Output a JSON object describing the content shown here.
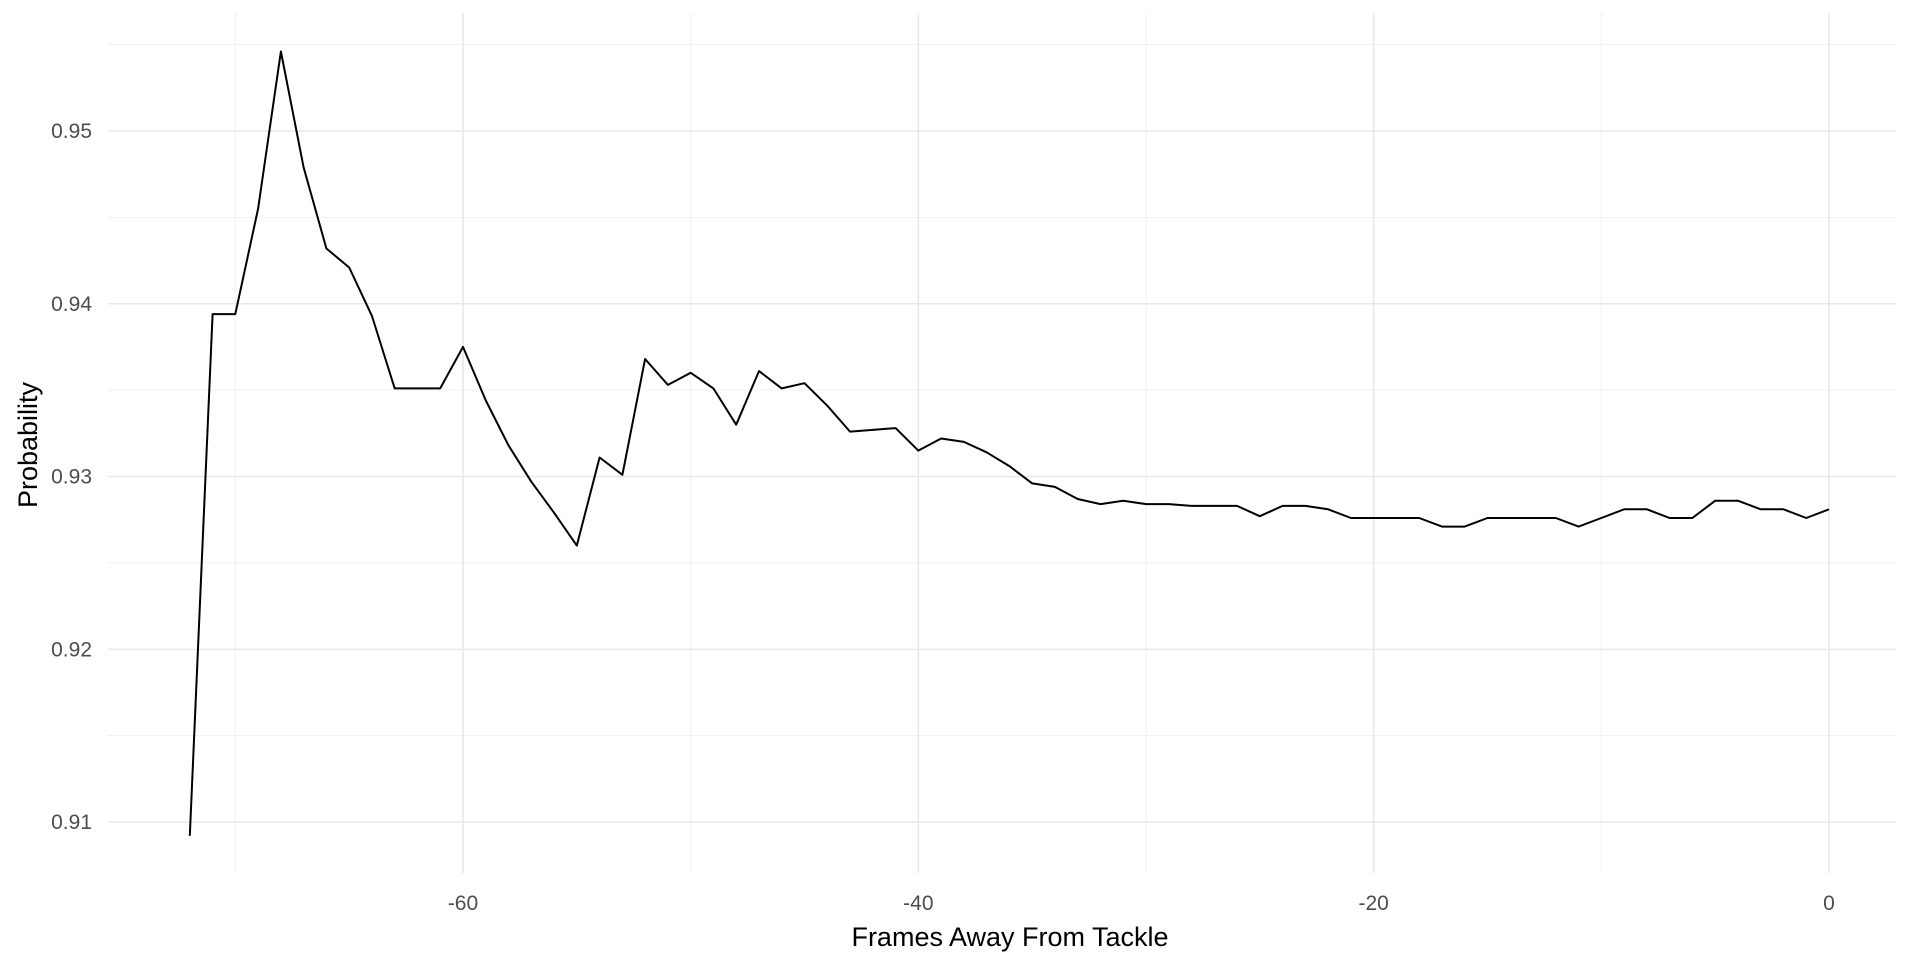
{
  "chart_data": {
    "type": "line",
    "title": "",
    "xlabel": "Frames Away From Tackle",
    "ylabel": "Probability",
    "xlim": [
      -78,
      3
    ],
    "ylim": [
      0.9085,
      0.9565
    ],
    "grid": true,
    "legend": "none",
    "x_major_ticks": [
      -60,
      -40,
      -20,
      0
    ],
    "x_minor_ticks": [
      -70,
      -50,
      -30,
      -10
    ],
    "y_major_ticks": [
      0.91,
      0.92,
      0.93,
      0.94,
      0.95
    ],
    "y_minor_ticks": [
      0.915,
      0.925,
      0.935,
      0.945,
      0.955
    ],
    "x_tick_labels": [
      "-60",
      "-40",
      "-20",
      "0"
    ],
    "y_tick_labels": [
      "0.91",
      "0.92",
      "0.93",
      "0.94",
      "0.95"
    ],
    "series": [
      {
        "color": "#000000",
        "x": [
          -72,
          -71,
          -70,
          -69,
          -68,
          -67,
          -66,
          -65,
          -64,
          -63,
          -62,
          -61,
          -60,
          -59,
          -58,
          -57,
          -56,
          -55,
          -54,
          -53,
          -52,
          -51,
          -50,
          -49,
          -48,
          -47,
          -46,
          -45,
          -44,
          -43,
          -42,
          -41,
          -40,
          -39,
          -38,
          -37,
          -36,
          -35,
          -34,
          -33,
          -32,
          -31,
          -30,
          -29,
          -28,
          -27,
          -26,
          -25,
          -24,
          -23,
          -22,
          -21,
          -20,
          -19,
          -18,
          -17,
          -16,
          -15,
          -14,
          -13,
          -12,
          -11,
          -10,
          -9,
          -8,
          -7,
          -6,
          -5,
          -4,
          -3,
          -2,
          -1,
          0
        ],
        "values": [
          0.9092,
          0.9394,
          0.9394,
          0.9455,
          0.9546,
          0.9479,
          0.9432,
          0.9421,
          0.9393,
          0.9351,
          0.9351,
          0.9351,
          0.9375,
          0.9344,
          0.9318,
          0.9297,
          0.9279,
          0.926,
          0.9311,
          0.9301,
          0.9368,
          0.9353,
          0.936,
          0.9351,
          0.933,
          0.9361,
          0.9351,
          0.9354,
          0.9341,
          0.9326,
          0.9327,
          0.9328,
          0.9315,
          0.9322,
          0.932,
          0.9314,
          0.9306,
          0.9296,
          0.9294,
          0.9287,
          0.9284,
          0.9286,
          0.9284,
          0.9284,
          0.9283,
          0.9283,
          0.9283,
          0.9277,
          0.9283,
          0.9283,
          0.9281,
          0.9276,
          0.9276,
          0.9276,
          0.9276,
          0.9271,
          0.9271,
          0.9276,
          0.9276,
          0.9276,
          0.9276,
          0.9271,
          0.9276,
          0.9281,
          0.9281,
          0.9276,
          0.9276,
          0.9286,
          0.9286,
          0.9281,
          0.9281,
          0.9276,
          0.9281
        ]
      }
    ]
  }
}
